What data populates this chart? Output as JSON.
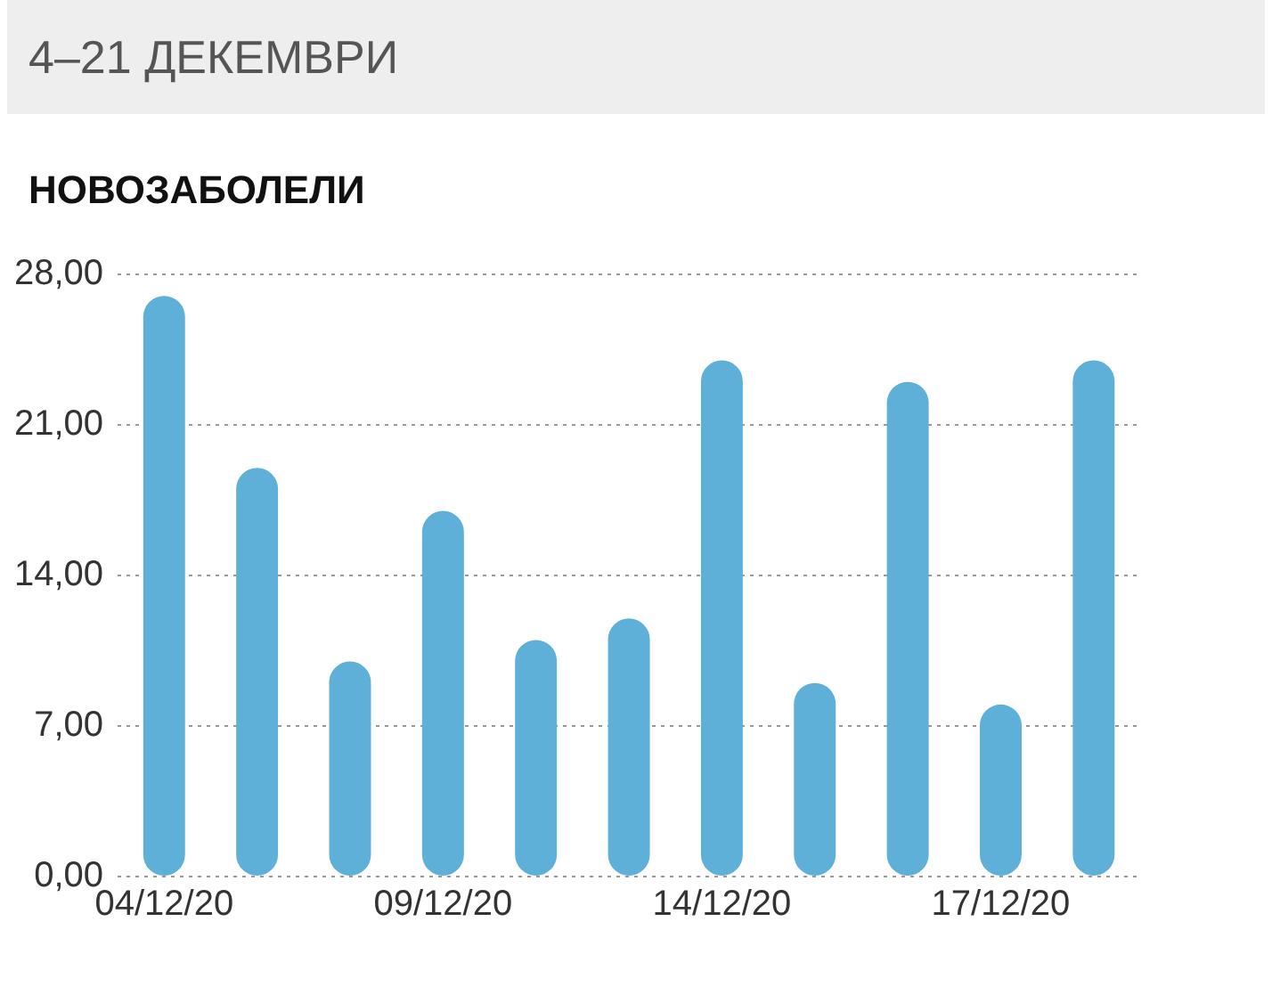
{
  "chart_data": {
    "type": "bar",
    "title": "4–21 ДЕКЕМВРИ",
    "subtitle": "НОВОЗАБОЛЕЛИ",
    "categories": [
      "04/12/20",
      null,
      null,
      "09/12/20",
      null,
      null,
      "14/12/20",
      null,
      null,
      "17/12/20",
      null
    ],
    "values": [
      27,
      19,
      10,
      17,
      11,
      12,
      24,
      9,
      23,
      8,
      24
    ],
    "color": "#5fb0d9",
    "ylim": [
      0,
      28
    ],
    "yticks": [
      {
        "value": 0,
        "label": "0,00"
      },
      {
        "value": 7,
        "label": "7,00"
      },
      {
        "value": 14,
        "label": "14,00"
      },
      {
        "value": 21,
        "label": "21,00"
      },
      {
        "value": 28,
        "label": "28,00"
      }
    ],
    "grid": "y"
  }
}
